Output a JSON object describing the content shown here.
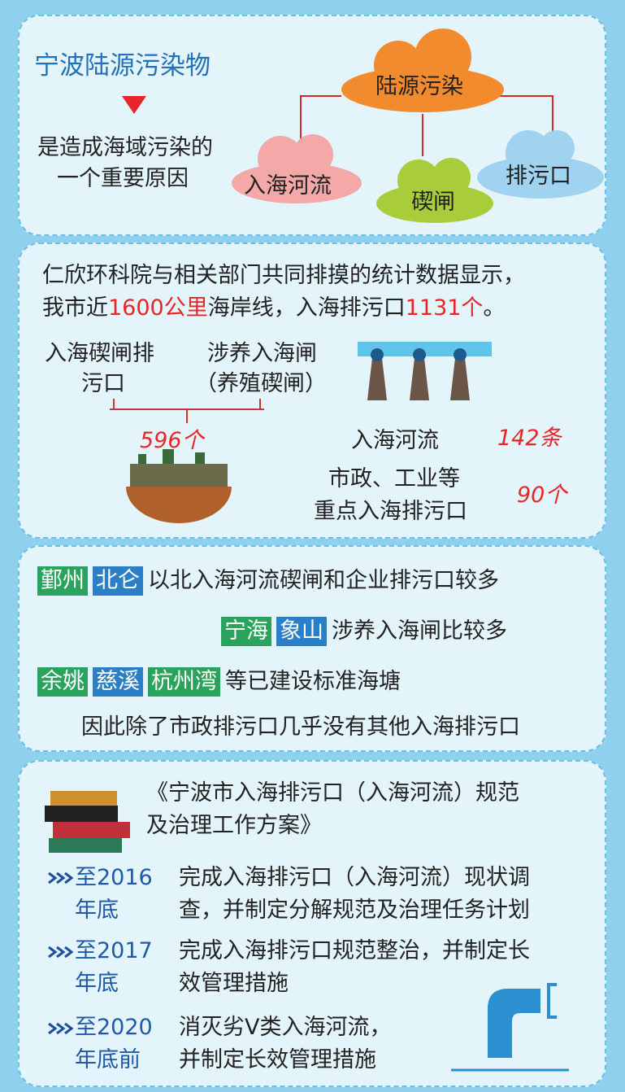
{
  "section1": {
    "title": "宁波陆源污染物",
    "lines": [
      "是造成海域污染的",
      "一个重要原因"
    ],
    "clouds": [
      "陆源污染",
      "入海河流",
      "碶闸",
      "排污口"
    ]
  },
  "section2": {
    "line1": "仁欣环科院与相关部门共同排摸的统计数据显示，",
    "line2": [
      "我市近",
      "1600公里",
      "海岸线，入海排污口",
      "1131个",
      "。"
    ],
    "sluice": [
      "入海碶闸排",
      "污口"
    ],
    "aquaculture": [
      "涉养入海闸",
      "（养殖碶闸）"
    ],
    "sluice_count": "596个",
    "rivers": "入海河流",
    "rivers_count": "142条",
    "outlets": [
      "市政、工业等",
      "重点入海排污口"
    ],
    "outlets_count": "90个"
  },
  "section3": {
    "rows": [
      {
        "tags": [
          "鄞州",
          "北仑"
        ],
        "text": "以北入海河流碶闸和企业排污口较多"
      },
      {
        "tags": [
          "宁海",
          "象山"
        ],
        "text": "涉养入海闸比较多"
      },
      {
        "tags": [
          "余姚",
          "慈溪",
          "杭州湾"
        ],
        "text": "等已建设标准海塘"
      },
      {
        "tags": [],
        "text": "因此除了市政排污口几乎没有其他入海排污口"
      }
    ]
  },
  "section4": {
    "plan": [
      "《宁波市入海排污口（入海河流）规范",
      "及治理工作方案》"
    ],
    "timeline": [
      {
        "when": [
          "至2016",
          "年底"
        ],
        "what": [
          "完成入海排污口（入海河流）现状调",
          "查，并制定分解规范及治理任务计划"
        ]
      },
      {
        "when": [
          "至2017",
          "年底"
        ],
        "what": [
          "完成入海排污口规范整治，并制定长",
          "效管理措施"
        ]
      },
      {
        "when": [
          "至2020",
          "年底前"
        ],
        "what": [
          "消灭劣Ⅴ类入海河流，",
          "并制定长效管理措施"
        ]
      }
    ]
  }
}
